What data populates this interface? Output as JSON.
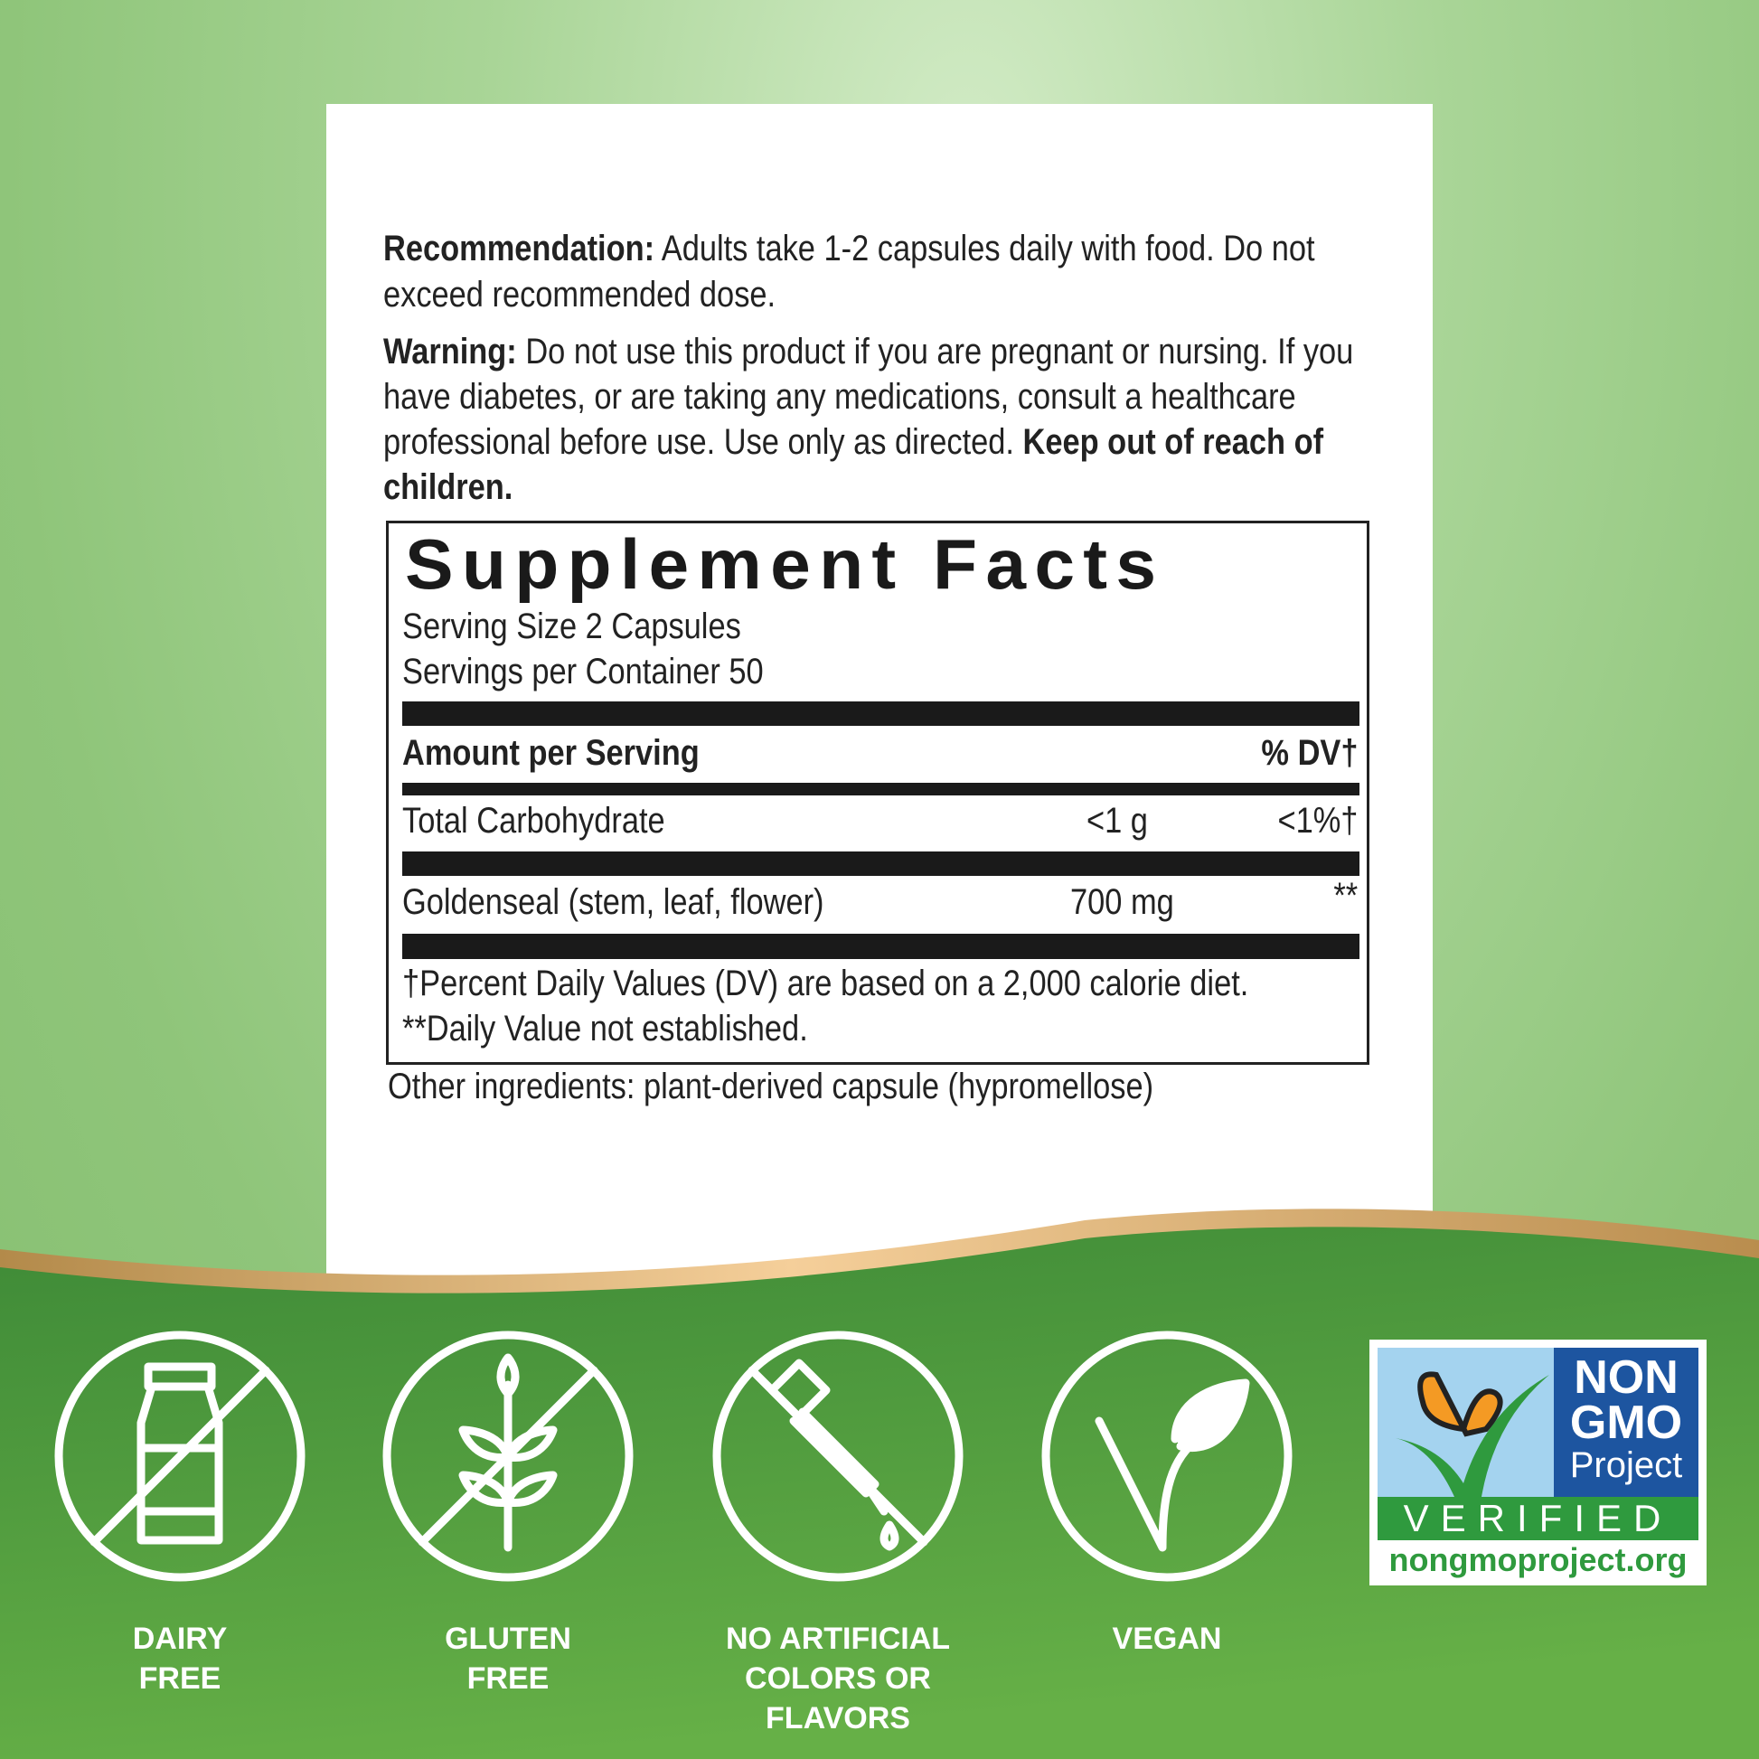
{
  "recommendation": {
    "label": "Recommendation:",
    "text": " Adults take 1-2 capsules daily with food. Do not exceed recommended dose."
  },
  "warning": {
    "label": "Warning:",
    "text": " Do not use this product if you are pregnant or nursing. If you have diabetes, or are taking any medications, consult a healthcare professional before use. Use only as directed. ",
    "bold_end": "Keep out of reach of children."
  },
  "facts": {
    "title": "Supplement Facts",
    "serving_size": "Serving Size 2 Capsules",
    "servings_per_container": "Servings per Container 50",
    "amount_header": "Amount per Serving",
    "dv_header": "% DV†",
    "rows": [
      {
        "name": "Total Carbohydrate",
        "amount": "<1 g",
        "dv": "<1%†"
      },
      {
        "name": "Goldenseal (stem, leaf, flower)",
        "amount": "700 mg",
        "dv": "**"
      }
    ],
    "footnote1": "†Percent Daily Values (DV) are based on a 2,000 calorie diet.",
    "footnote2": "**Daily Value not established."
  },
  "other_ingredients": "Other ingredients: plant-derived capsule (hypromellose)",
  "badges": [
    {
      "icon": "dairy-bottle-crossed-icon",
      "label1": "DAIRY",
      "label2": "FREE"
    },
    {
      "icon": "wheat-crossed-icon",
      "label1": "GLUTEN",
      "label2": "FREE"
    },
    {
      "icon": "dropper-crossed-icon",
      "label1": "NO ARTIFICIAL",
      "label2": "COLORS OR",
      "label3": "FLAVORS"
    },
    {
      "icon": "leaf-check-icon",
      "label1": "VEGAN"
    }
  ],
  "nongmo": {
    "line1": "NON",
    "line2": "GMO",
    "line3": "Project",
    "verified": "VERIFIED",
    "url": "nongmoproject.org"
  },
  "colors": {
    "green_dark": "#3f8c3a",
    "green_light": "#64ad45",
    "gold": "#d8a86a",
    "nongmo_blue": "#1d55a0",
    "nongmo_green": "#2f9a3e",
    "butterfly": "#f49a24"
  }
}
